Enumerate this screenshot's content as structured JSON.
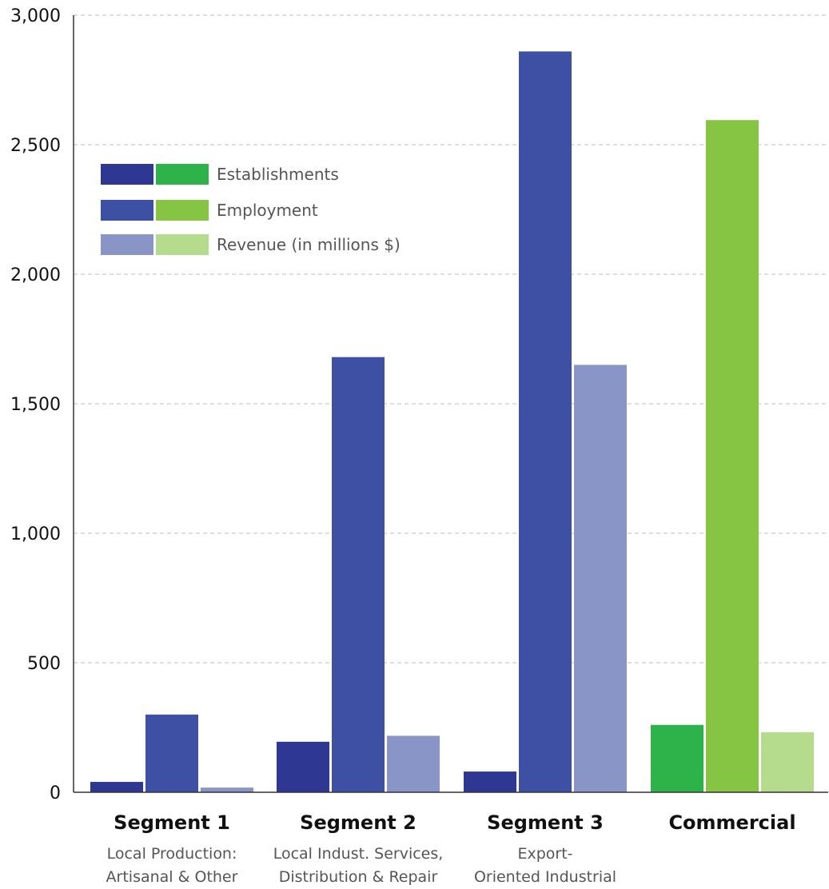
{
  "chart_data": {
    "type": "bar",
    "title": "",
    "xlabel": "",
    "ylabel": "",
    "ylim": [
      0,
      3000
    ],
    "yticks": [
      0,
      500,
      1000,
      1500,
      2000,
      2500,
      3000
    ],
    "ytick_labels": [
      "0",
      "500",
      "1,000",
      "1,500",
      "2,000",
      "2,500",
      "3,000"
    ],
    "grid": "horizontal-dashed",
    "legend_position": "top-left",
    "categories": [
      {
        "name": "Segment 1",
        "sub": [
          "Local Production:",
          "Artisanal & Other"
        ],
        "palette": "blue"
      },
      {
        "name": "Segment 2",
        "sub": [
          "Local Indust. Services,",
          "Distribution & Repair"
        ],
        "palette": "blue"
      },
      {
        "name": "Segment 3",
        "sub": [
          "Export-",
          "Oriented Industrial"
        ],
        "palette": "blue"
      },
      {
        "name": "Commercial",
        "sub": [],
        "palette": "green"
      }
    ],
    "series": [
      {
        "name": "Establishments",
        "values": [
          40,
          195,
          80,
          260
        ]
      },
      {
        "name": "Employment",
        "values": [
          300,
          1680,
          2860,
          2595
        ]
      },
      {
        "name": "Revenue (in millions $)",
        "values": [
          18,
          218,
          1650,
          232
        ]
      }
    ],
    "colors": {
      "blue": [
        "#2e3792",
        "#3e50a3",
        "#8a95c7"
      ],
      "green": [
        "#2db34a",
        "#86c443",
        "#b5dc8c"
      ]
    }
  }
}
